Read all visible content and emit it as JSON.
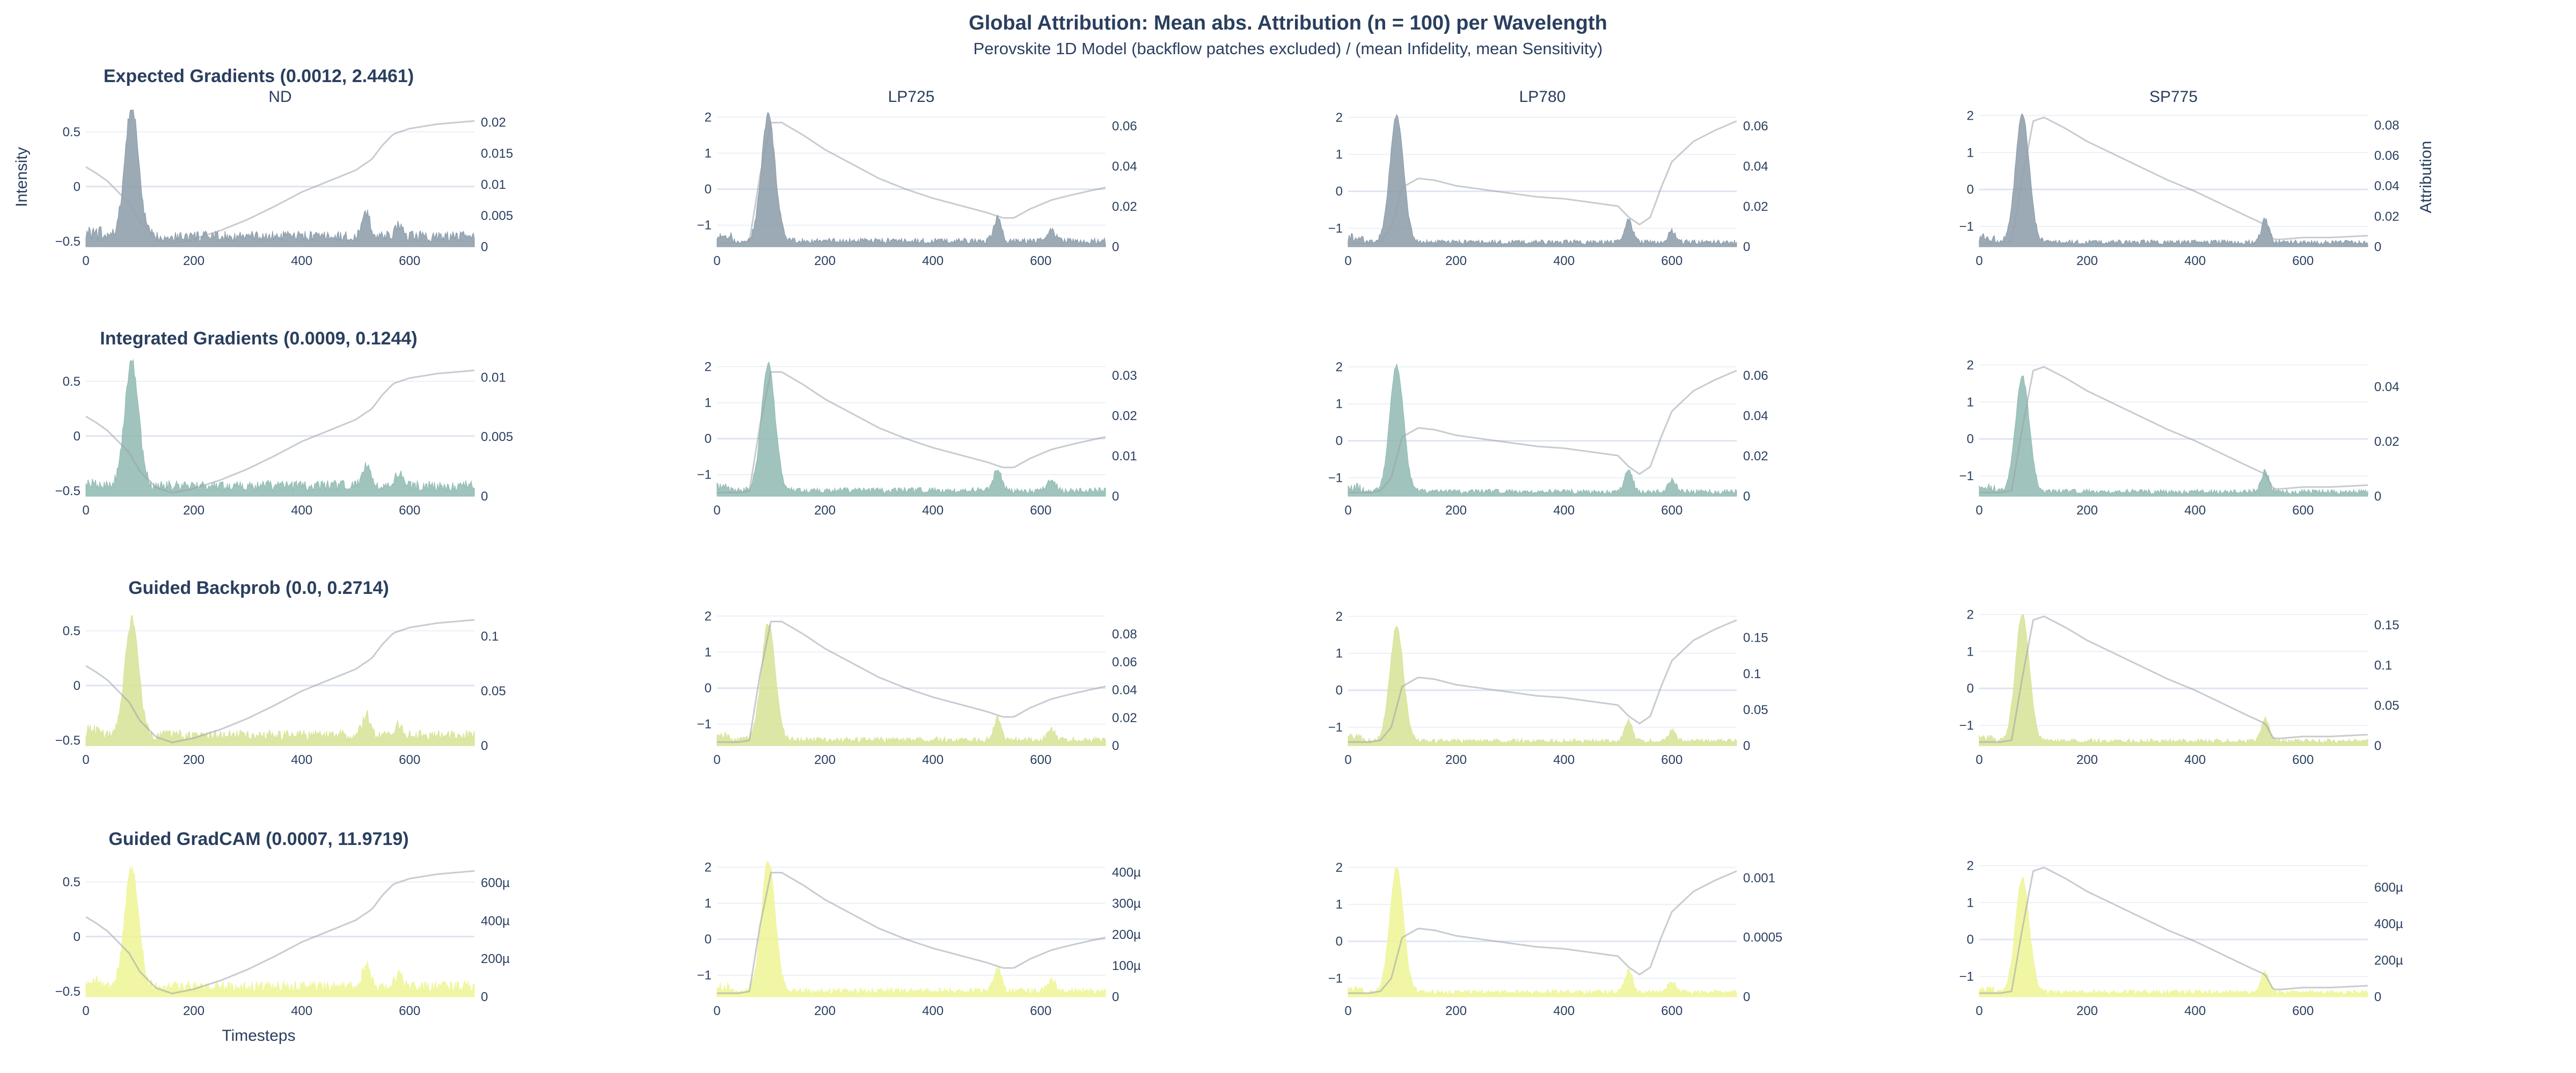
{
  "chart_data": {
    "type": "area",
    "title": "Global Attribution: Mean abs. Attribution (n = 100) per Wavelength",
    "subtitle": "Perovskite 1D Model (backflow patches excluded) / (mean Infidelity, mean Sensitivity)",
    "xlabel": "Timesteps",
    "ylabel_left": "Intensity",
    "ylabel_right": "Attribution",
    "xlim": [
      0,
      720
    ],
    "x_ticks": [
      0,
      200,
      400,
      600
    ],
    "x_tick_labels": [
      "0",
      "200",
      "400",
      "600"
    ],
    "columns": [
      "ND",
      "LP725",
      "LP780",
      "SP775"
    ],
    "rows": [
      {
        "method": "Expected Gradients",
        "label": "Expected Gradients (0.0012, 2.4461)",
        "color": "#8a9ba8",
        "right_axes": [
          {
            "ylim": [
              0,
              0.022
            ],
            "ticks": [
              0,
              0.005,
              0.01,
              0.015,
              0.02
            ],
            "tick_labels": [
              "0",
              "0.005",
              "0.01",
              "0.015",
              "0.02"
            ]
          },
          {
            "ylim": [
              0,
              0.068
            ],
            "ticks": [
              0,
              0.02,
              0.04,
              0.06
            ],
            "tick_labels": [
              "0",
              "0.02",
              "0.04",
              "0.06"
            ]
          },
          {
            "ylim": [
              0,
              0.068
            ],
            "ticks": [
              0,
              0.02,
              0.04,
              0.06
            ],
            "tick_labels": [
              "0",
              "0.02",
              "0.04",
              "0.06"
            ]
          },
          {
            "ylim": [
              0,
              0.09
            ],
            "ticks": [
              0,
              0.02,
              0.04,
              0.06,
              0.08
            ],
            "tick_labels": [
              "0",
              "0.02",
              "0.04",
              "0.06",
              "0.08"
            ]
          }
        ]
      },
      {
        "method": "Integrated Gradients",
        "label": "Integrated Gradients (0.0009, 0.1244)",
        "color": "#8fbab2",
        "right_axes": [
          {
            "ylim": [
              0,
              0.0115
            ],
            "ticks": [
              0,
              0.005,
              0.01
            ],
            "tick_labels": [
              "0",
              "0.005",
              "0.01"
            ]
          },
          {
            "ylim": [
              0,
              0.034
            ],
            "ticks": [
              0,
              0.01,
              0.02,
              0.03
            ],
            "tick_labels": [
              "0",
              "0.01",
              "0.02",
              "0.03"
            ]
          },
          {
            "ylim": [
              0,
              0.068
            ],
            "ticks": [
              0,
              0.02,
              0.04,
              0.06
            ],
            "tick_labels": [
              "0",
              "0.02",
              "0.04",
              "0.06"
            ]
          },
          {
            "ylim": [
              0,
              0.05
            ],
            "ticks": [
              0,
              0.02,
              0.04
            ],
            "tick_labels": [
              "0",
              "0.02",
              "0.04"
            ]
          }
        ]
      },
      {
        "method": "Guided Backprob",
        "label": "Guided Backprob (0.0, 0.2714)",
        "color": "#d6e395",
        "right_axes": [
          {
            "ylim": [
              0,
              0.125
            ],
            "ticks": [
              0,
              0.05,
              0.1
            ],
            "tick_labels": [
              "0",
              "0.05",
              "0.1"
            ]
          },
          {
            "ylim": [
              0,
              0.098
            ],
            "ticks": [
              0,
              0.02,
              0.04,
              0.06,
              0.08
            ],
            "tick_labels": [
              "0",
              "0.02",
              "0.04",
              "0.06",
              "0.08"
            ]
          },
          {
            "ylim": [
              0,
              0.19
            ],
            "ticks": [
              0,
              0.05,
              0.1,
              0.15
            ],
            "tick_labels": [
              "0",
              "0.05",
              "0.1",
              "0.15"
            ]
          },
          {
            "ylim": [
              0,
              0.17
            ],
            "ticks": [
              0,
              0.05,
              0.1,
              0.15
            ],
            "tick_labels": [
              "0",
              "0.05",
              "0.1",
              "0.15"
            ]
          }
        ]
      },
      {
        "method": "Guided GradCAM",
        "label": "Guided GradCAM (0.0007, 11.9719)",
        "color": "#eef595",
        "right_axes": [
          {
            "ylim": [
              0,
              0.00072
            ],
            "ticks": [
              0,
              0.0002,
              0.0004,
              0.0006
            ],
            "tick_labels": [
              "0",
              "200µ",
              "400µ",
              "600µ"
            ]
          },
          {
            "ylim": [
              0,
              0.00044
            ],
            "ticks": [
              0,
              0.0001,
              0.0002,
              0.0003,
              0.0004
            ],
            "tick_labels": [
              "0",
              "100µ",
              "200µ",
              "300µ",
              "400µ"
            ]
          },
          {
            "ylim": [
              0,
              0.00115
            ],
            "ticks": [
              0,
              0.0005,
              0.001
            ],
            "tick_labels": [
              "0",
              "0.0005",
              "0.001"
            ]
          },
          {
            "ylim": [
              0,
              0.00075
            ],
            "ticks": [
              0,
              0.0002,
              0.0004,
              0.0006
            ],
            "tick_labels": [
              "0",
              "200µ",
              "400µ",
              "600µ"
            ]
          }
        ]
      }
    ],
    "left_axes": [
      {
        "ylim": [
          -0.55,
          0.7
        ],
        "ticks": [
          -0.5,
          0,
          0.5
        ],
        "tick_labels": [
          "−0.5",
          "0",
          "0.5"
        ]
      },
      {
        "ylim": [
          -1.6,
          2.2
        ],
        "ticks": [
          -1,
          0,
          1,
          2
        ],
        "tick_labels": [
          "−1",
          "0",
          "1",
          "2"
        ]
      },
      {
        "ylim": [
          -1.5,
          2.2
        ],
        "ticks": [
          -1,
          0,
          1,
          2
        ],
        "tick_labels": [
          "−1",
          "0",
          "1",
          "2"
        ]
      },
      {
        "ylim": [
          -1.55,
          2.15
        ],
        "ticks": [
          -1,
          0,
          1,
          2
        ],
        "tick_labels": [
          "−1",
          "0",
          "1",
          "2"
        ]
      }
    ],
    "intensity_series": [
      {
        "name": "ND",
        "x": [
          0,
          20,
          40,
          60,
          80,
          100,
          130,
          160,
          200,
          250,
          300,
          350,
          400,
          450,
          500,
          530,
          550,
          570,
          600,
          650,
          720
        ],
        "y": [
          0.18,
          0.12,
          0.05,
          -0.05,
          -0.15,
          -0.32,
          -0.47,
          -0.52,
          -0.48,
          -0.4,
          -0.3,
          -0.18,
          -0.05,
          0.05,
          0.15,
          0.25,
          0.38,
          0.48,
          0.53,
          0.57,
          0.6
        ]
      },
      {
        "name": "LP725",
        "x": [
          0,
          40,
          60,
          80,
          100,
          120,
          160,
          200,
          250,
          300,
          350,
          400,
          450,
          500,
          530,
          550,
          580,
          620,
          660,
          720
        ],
        "y": [
          -1.5,
          -1.5,
          -1.45,
          0.4,
          1.85,
          1.85,
          1.5,
          1.1,
          0.7,
          0.3,
          0,
          -0.25,
          -0.45,
          -0.65,
          -0.8,
          -0.8,
          -0.55,
          -0.3,
          -0.15,
          0.05
        ]
      },
      {
        "name": "LP780",
        "x": [
          0,
          40,
          60,
          80,
          100,
          130,
          160,
          200,
          250,
          300,
          350,
          400,
          450,
          500,
          520,
          540,
          560,
          580,
          600,
          640,
          680,
          720
        ],
        "y": [
          -1.4,
          -1.4,
          -1.35,
          -1.0,
          0.1,
          0.35,
          0.3,
          0.15,
          0.05,
          -0.05,
          -0.15,
          -0.2,
          -0.3,
          -0.4,
          -0.7,
          -0.9,
          -0.7,
          0.1,
          0.8,
          1.35,
          1.65,
          1.9
        ]
      },
      {
        "name": "SP775",
        "x": [
          0,
          40,
          60,
          80,
          100,
          120,
          160,
          200,
          250,
          300,
          350,
          400,
          450,
          500,
          530,
          545,
          560,
          600,
          650,
          720
        ],
        "y": [
          -1.45,
          -1.45,
          -1.4,
          0.3,
          1.85,
          1.95,
          1.65,
          1.3,
          0.95,
          0.6,
          0.25,
          -0.05,
          -0.4,
          -0.75,
          -0.95,
          -1.35,
          -1.35,
          -1.3,
          -1.3,
          -1.25
        ]
      }
    ],
    "attribution_profiles": [
      {
        "column": "ND",
        "peak_x": 85,
        "peak_width": 18,
        "secondary_peaks_x": [
          520,
          580
        ],
        "baseline_level": 0.09
      },
      {
        "column": "LP725",
        "peak_x": 95,
        "peak_width": 18,
        "secondary_peaks_x": [
          520,
          620
        ],
        "baseline_level": 0.05
      },
      {
        "column": "LP780",
        "peak_x": 90,
        "peak_width": 18,
        "secondary_peaks_x": [
          520,
          600
        ],
        "baseline_level": 0.04
      },
      {
        "column": "SP775",
        "peak_x": 80,
        "peak_width": 18,
        "secondary_peaks_x": [
          530
        ],
        "baseline_level": 0.04
      }
    ]
  }
}
